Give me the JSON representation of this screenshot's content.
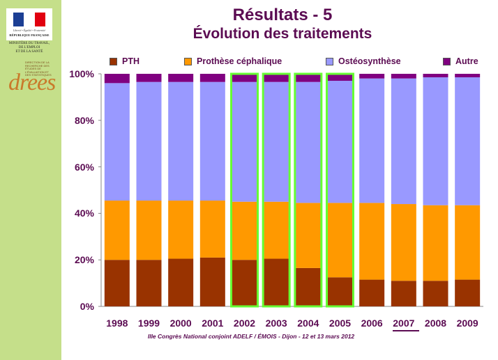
{
  "logo": {
    "motto": "Liberté • Égalité • Fraternité",
    "republic": "RÉPUBLIQUE FRANÇAISE",
    "ministry": "MINISTÈRE DU TRAVAIL,\nDE L'EMPLOI\nET DE LA SANTÉ",
    "drees_name": "drees",
    "drees_full": "DIRECTION DE LA RECHERCHE DES ÉTUDES DE L'ÉVALUATION ET DES STATISTIQUES"
  },
  "footer": "IIIe Congrès National conjoint ADELF / ÉMOIS - Dijon - 12 et 13 mars 2012",
  "colors": {
    "PTH": "#993300",
    "Prothese": "#ff9900",
    "Osteo": "#9999ff",
    "Autre": "#800080",
    "highlight": "#66ff33",
    "text": "#5b0b52",
    "sidebar": "#c5df8a"
  },
  "chart_data": {
    "type": "bar",
    "stacked": true,
    "percent": true,
    "title": "Résultats - 5",
    "subtitle": "Évolution des traitements",
    "categories": [
      "1998",
      "1999",
      "2000",
      "2001",
      "2002",
      "2003",
      "2004",
      "2005",
      "2006",
      "2007",
      "2008",
      "2009"
    ],
    "highlighted": [
      "2002",
      "2003",
      "2004",
      "2005"
    ],
    "underlined": "2007",
    "yticks": [
      "0%",
      "20%",
      "40%",
      "60%",
      "80%",
      "100%"
    ],
    "ylim": [
      0,
      100
    ],
    "legend_position": "top",
    "series": [
      {
        "name": "PTH",
        "values": [
          20,
          20,
          20.5,
          21,
          20,
          20.5,
          16.5,
          12.5,
          11.5,
          11,
          11,
          11.5
        ]
      },
      {
        "name": "Prothèse céphalique",
        "values": [
          25.5,
          25.5,
          25,
          24.5,
          25,
          24.5,
          28,
          32,
          33,
          33,
          32.5,
          32
        ]
      },
      {
        "name": "Ostéosynthèse",
        "values": [
          50.5,
          51,
          51,
          51,
          51.5,
          51.5,
          52,
          52.5,
          53.5,
          54,
          55,
          55
        ]
      },
      {
        "name": "Autre",
        "values": [
          4,
          3.5,
          3.5,
          3.5,
          3.5,
          3.5,
          3.5,
          3,
          2,
          2,
          1.5,
          1.5
        ]
      }
    ]
  }
}
